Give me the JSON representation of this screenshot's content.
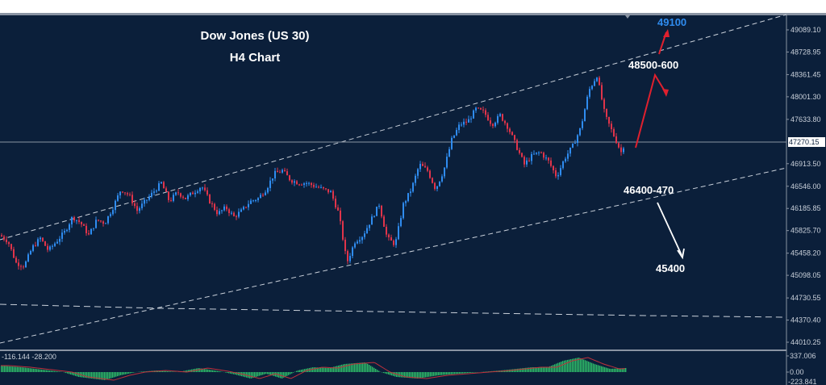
{
  "chart_data": {
    "type": "candlestick",
    "title": "Dow Jones (US 30)",
    "subtitle": "H4 Chart",
    "instrument": "Dow Jones (US 30)",
    "timeframe": "H4",
    "xlabel": "",
    "ylabel": "",
    "y_ticks": [
      49089.1,
      48728.95,
      48361.45,
      48001.3,
      47633.8,
      47270.15,
      46913.5,
      46546.0,
      46185.85,
      45825.7,
      45458.2,
      45098.05,
      44730.55,
      44370.4,
      44010.25
    ],
    "ylim": [
      43900,
      49350
    ],
    "current_price": 47270.15,
    "grid": false,
    "annotations": [
      {
        "text": "49100",
        "type": "target",
        "color": "#2f8cf0"
      },
      {
        "text": "48500-600",
        "type": "resistance",
        "color": "#ffffff"
      },
      {
        "text": "46400-470",
        "type": "support",
        "color": "#ffffff"
      },
      {
        "text": "45400",
        "type": "target",
        "color": "#ffffff"
      }
    ],
    "approx_price_path": [
      {
        "i": 0,
        "close": 45750
      },
      {
        "i": 10,
        "close": 45650
      },
      {
        "i": 20,
        "close": 45300
      },
      {
        "i": 30,
        "close": 45250
      },
      {
        "i": 40,
        "close": 45550
      },
      {
        "i": 50,
        "close": 45700
      },
      {
        "i": 60,
        "close": 45500
      },
      {
        "i": 70,
        "close": 45650
      },
      {
        "i": 80,
        "close": 45800
      },
      {
        "i": 90,
        "close": 46050
      },
      {
        "i": 100,
        "close": 45950
      },
      {
        "i": 110,
        "close": 45750
      },
      {
        "i": 120,
        "close": 46000
      },
      {
        "i": 130,
        "close": 45950
      },
      {
        "i": 140,
        "close": 46200
      },
      {
        "i": 150,
        "close": 46500
      },
      {
        "i": 160,
        "close": 46400
      },
      {
        "i": 170,
        "close": 46150
      },
      {
        "i": 180,
        "close": 46300
      },
      {
        "i": 190,
        "close": 46450
      },
      {
        "i": 200,
        "close": 46600
      },
      {
        "i": 210,
        "close": 46300
      },
      {
        "i": 220,
        "close": 46450
      },
      {
        "i": 230,
        "close": 46350
      },
      {
        "i": 240,
        "close": 46450
      },
      {
        "i": 250,
        "close": 46550
      },
      {
        "i": 260,
        "close": 46300
      },
      {
        "i": 270,
        "close": 46100
      },
      {
        "i": 280,
        "close": 46200
      },
      {
        "i": 290,
        "close": 46050
      },
      {
        "i": 300,
        "close": 46150
      },
      {
        "i": 310,
        "close": 46300
      },
      {
        "i": 320,
        "close": 46350
      },
      {
        "i": 330,
        "close": 46500
      },
      {
        "i": 340,
        "close": 46750
      },
      {
        "i": 350,
        "close": 46800
      },
      {
        "i": 360,
        "close": 46650
      },
      {
        "i": 370,
        "close": 46600
      },
      {
        "i": 380,
        "close": 46600
      },
      {
        "i": 390,
        "close": 46550
      },
      {
        "i": 400,
        "close": 46500
      },
      {
        "i": 410,
        "close": 46450
      },
      {
        "i": 420,
        "close": 46100
      },
      {
        "i": 430,
        "close": 45300
      },
      {
        "i": 440,
        "close": 45650
      },
      {
        "i": 450,
        "close": 45750
      },
      {
        "i": 460,
        "close": 46000
      },
      {
        "i": 470,
        "close": 46250
      },
      {
        "i": 480,
        "close": 45700
      },
      {
        "i": 490,
        "close": 45600
      },
      {
        "i": 500,
        "close": 46250
      },
      {
        "i": 510,
        "close": 46500
      },
      {
        "i": 520,
        "close": 46900
      },
      {
        "i": 530,
        "close": 46800
      },
      {
        "i": 540,
        "close": 46500
      },
      {
        "i": 550,
        "close": 46800
      },
      {
        "i": 560,
        "close": 47300
      },
      {
        "i": 570,
        "close": 47550
      },
      {
        "i": 580,
        "close": 47600
      },
      {
        "i": 590,
        "close": 47800
      },
      {
        "i": 600,
        "close": 47750
      },
      {
        "i": 610,
        "close": 47550
      },
      {
        "i": 620,
        "close": 47700
      },
      {
        "i": 630,
        "close": 47500
      },
      {
        "i": 640,
        "close": 47200
      },
      {
        "i": 650,
        "close": 46900
      },
      {
        "i": 660,
        "close": 47050
      },
      {
        "i": 670,
        "close": 47100
      },
      {
        "i": 680,
        "close": 46950
      },
      {
        "i": 690,
        "close": 46700
      },
      {
        "i": 700,
        "close": 47000
      },
      {
        "i": 710,
        "close": 47200
      },
      {
        "i": 720,
        "close": 47500
      },
      {
        "i": 730,
        "close": 48100
      },
      {
        "i": 740,
        "close": 48350
      },
      {
        "i": 750,
        "close": 47700
      },
      {
        "i": 760,
        "close": 47400
      },
      {
        "i": 770,
        "close": 47100
      },
      {
        "i": 775,
        "close": 47270
      }
    ],
    "trend_channel": {
      "upper_line": "rising dashed line from left ~45880 to right ~49400",
      "lower_line": "rising dashed line from left ~43950 to right ~46950",
      "horizontal_dashed": "slightly declining dashed line from ~44650 to ~44400"
    },
    "indicator": {
      "name": "MACD",
      "values_label": "-116.144 -28.200",
      "y_ticks": [
        337.006,
        0.0,
        -223.841
      ],
      "histogram_color": "#2fbf6a",
      "signal_color": "#c0303c"
    }
  },
  "header": {
    "title": "Dow Jones (US 30)",
    "subtitle": "H4 Chart"
  },
  "annotations": {
    "target_up": "49100",
    "resistance": "48500-600",
    "support": "46400-470",
    "target_down": "45400"
  },
  "price_axis": {
    "ticks": [
      "49089.10",
      "48728.95",
      "48361.45",
      "48001.30",
      "47633.80",
      "46913.50",
      "46546.00",
      "46185.85",
      "45825.70",
      "45458.20",
      "45098.05",
      "44730.55",
      "44370.40",
      "44010.25"
    ],
    "current": "47270.15"
  },
  "macd": {
    "label": "-116.144 -28.200",
    "ticks": [
      "337.006",
      "0.00",
      "-223.841"
    ]
  },
  "colors": {
    "background": "#0b1f3a",
    "bull": "#2f8cf0",
    "bear": "#e0344a",
    "macd_hist": "#2fbf6a",
    "macd_signal": "#c0303c",
    "target_blue": "#2f8cf0",
    "arrow_red": "#e0202e"
  }
}
